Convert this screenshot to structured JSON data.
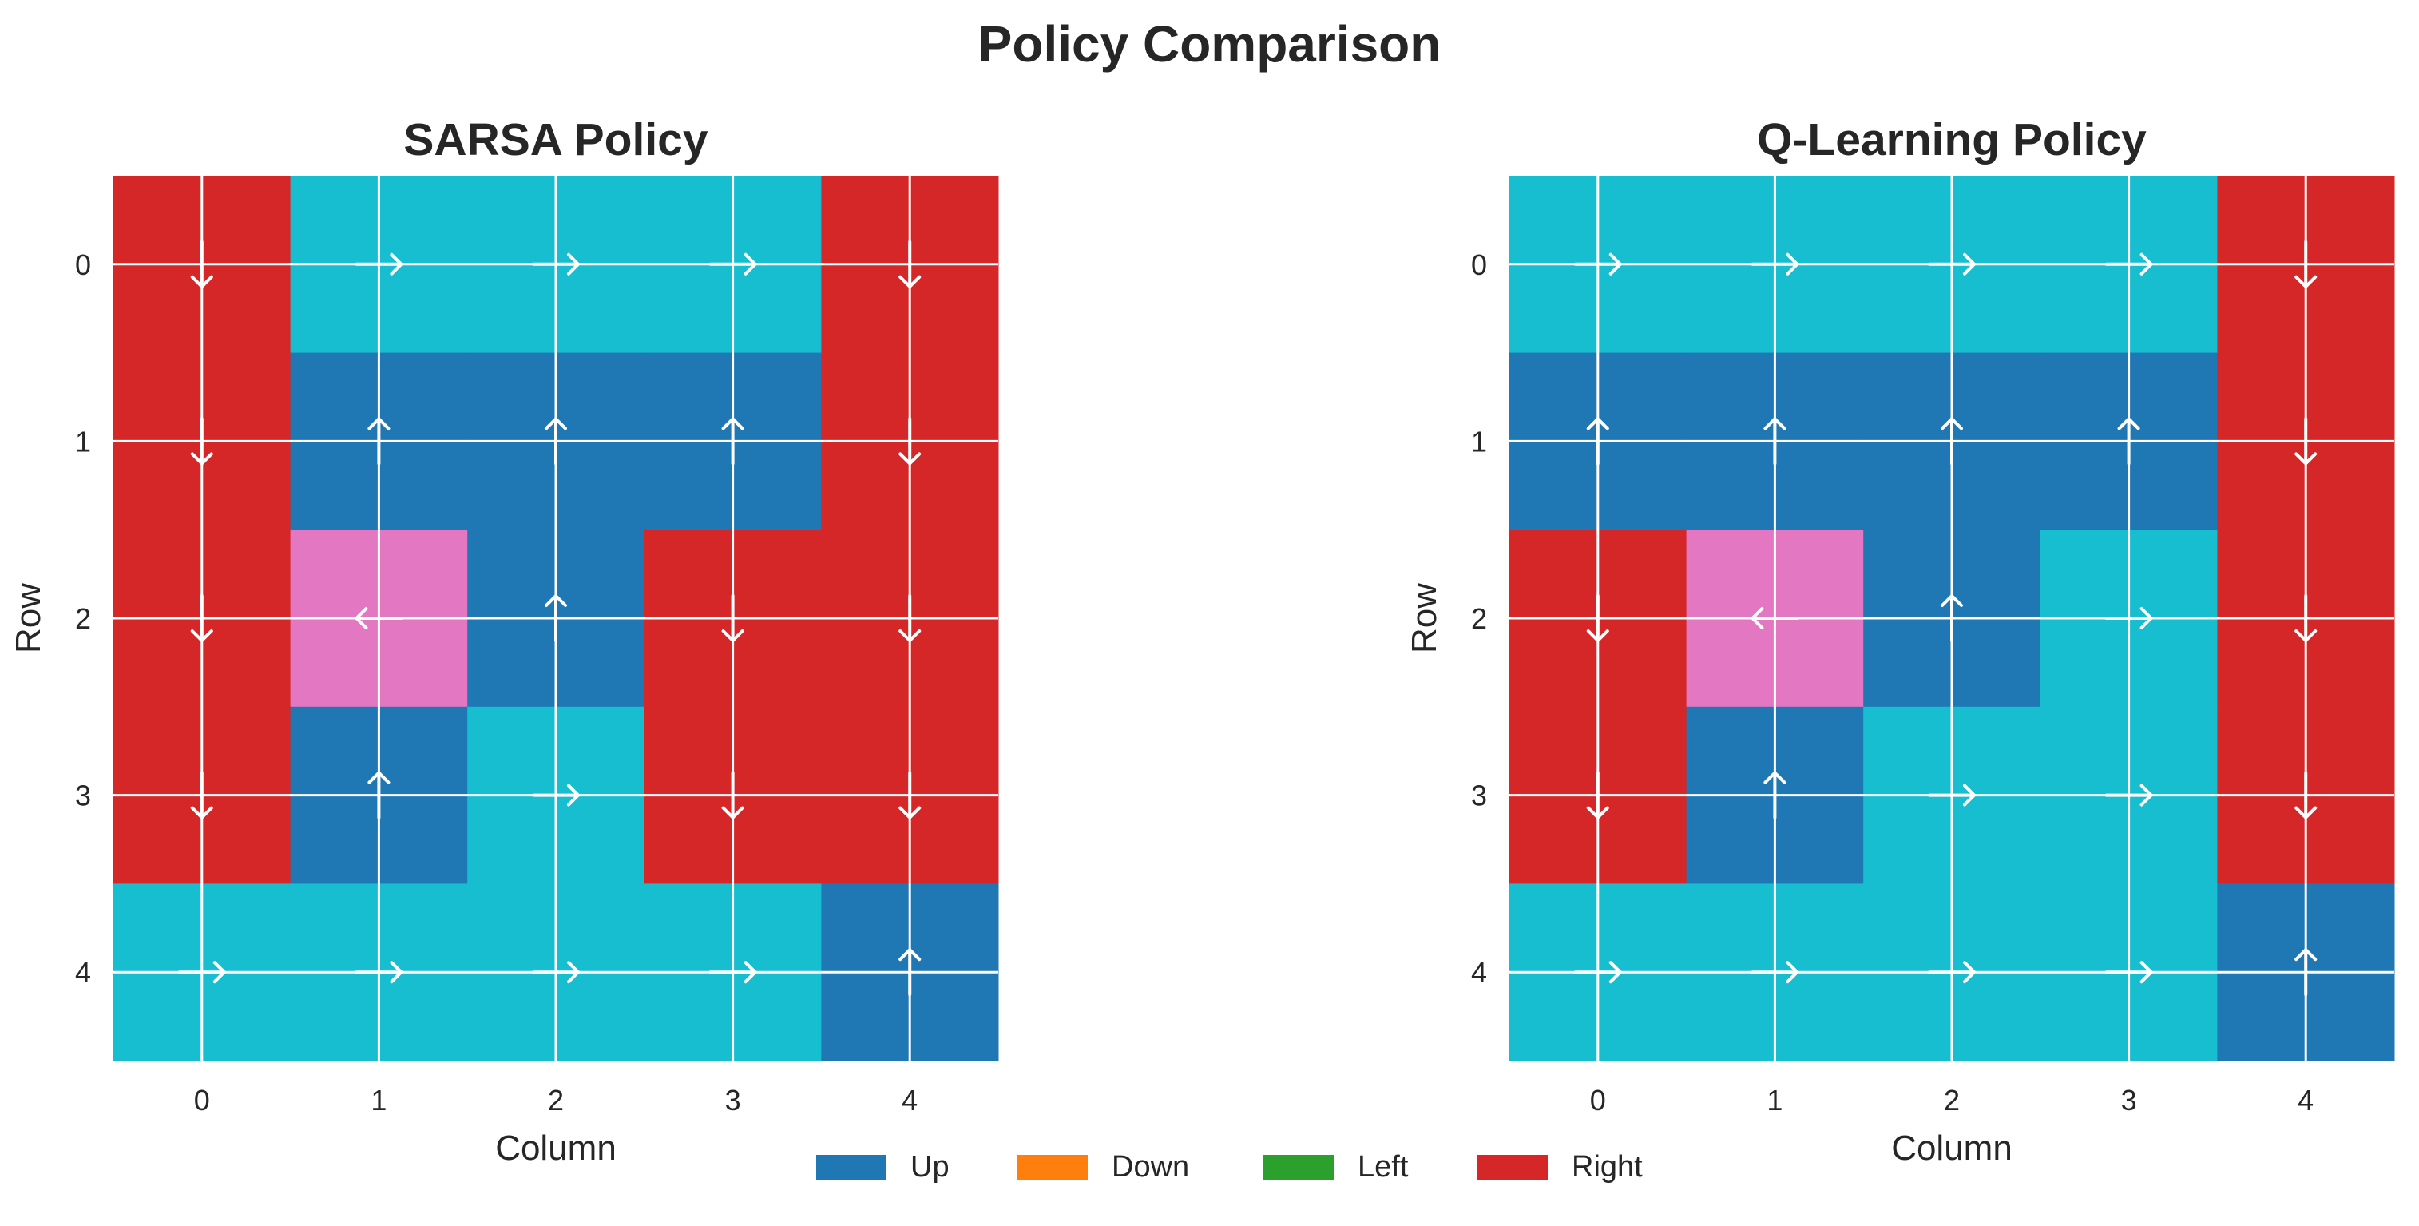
{
  "title": "Policy Comparison",
  "colors": {
    "Up": "#1f77b4",
    "Down": "#ff7f0e",
    "Left": "#2ca02c",
    "Right": "#d62728",
    "cyan": "#17becf",
    "pink": "#e377c2",
    "grid": "#ffffff",
    "arrow": "#ffffff"
  },
  "legend": [
    {
      "label": "Up",
      "color": "#1f77b4"
    },
    {
      "label": "Down",
      "color": "#ff7f0e"
    },
    {
      "label": "Left",
      "color": "#2ca02c"
    },
    {
      "label": "Right",
      "color": "#d62728"
    }
  ],
  "chart_data": [
    {
      "type": "heatmap",
      "title": "SARSA Policy",
      "xlabel": "Column",
      "ylabel": "Row",
      "x_ticks": [
        "0",
        "1",
        "2",
        "3",
        "4"
      ],
      "y_ticks": [
        "0",
        "1",
        "2",
        "3",
        "4"
      ],
      "cell_colors": [
        [
          "#d62728",
          "#17becf",
          "#17becf",
          "#17becf",
          "#d62728"
        ],
        [
          "#d62728",
          "#1f77b4",
          "#1f77b4",
          "#1f77b4",
          "#d62728"
        ],
        [
          "#d62728",
          "#e377c2",
          "#1f77b4",
          "#d62728",
          "#d62728"
        ],
        [
          "#d62728",
          "#1f77b4",
          "#17becf",
          "#d62728",
          "#d62728"
        ],
        [
          "#17becf",
          "#17becf",
          "#17becf",
          "#17becf",
          "#1f77b4"
        ]
      ],
      "arrows": [
        [
          "down",
          "right",
          "right",
          "right",
          "down"
        ],
        [
          "down",
          "up",
          "up",
          "up",
          "down"
        ],
        [
          "down",
          "left",
          "up",
          "down",
          "down"
        ],
        [
          "down",
          "up",
          "right",
          "down",
          "down"
        ],
        [
          "right",
          "right",
          "right",
          "right",
          "up"
        ]
      ]
    },
    {
      "type": "heatmap",
      "title": "Q-Learning Policy",
      "xlabel": "Column",
      "ylabel": "Row",
      "x_ticks": [
        "0",
        "1",
        "2",
        "3",
        "4"
      ],
      "y_ticks": [
        "0",
        "1",
        "2",
        "3",
        "4"
      ],
      "cell_colors": [
        [
          "#17becf",
          "#17becf",
          "#17becf",
          "#17becf",
          "#d62728"
        ],
        [
          "#1f77b4",
          "#1f77b4",
          "#1f77b4",
          "#1f77b4",
          "#d62728"
        ],
        [
          "#d62728",
          "#e377c2",
          "#1f77b4",
          "#17becf",
          "#d62728"
        ],
        [
          "#d62728",
          "#1f77b4",
          "#17becf",
          "#17becf",
          "#d62728"
        ],
        [
          "#17becf",
          "#17becf",
          "#17becf",
          "#17becf",
          "#1f77b4"
        ]
      ],
      "arrows": [
        [
          "right",
          "right",
          "right",
          "right",
          "down"
        ],
        [
          "up",
          "up",
          "up",
          "up",
          "down"
        ],
        [
          "down",
          "left",
          "up",
          "right",
          "down"
        ],
        [
          "down",
          "up",
          "right",
          "right",
          "down"
        ],
        [
          "right",
          "right",
          "right",
          "right",
          "up"
        ]
      ]
    }
  ]
}
